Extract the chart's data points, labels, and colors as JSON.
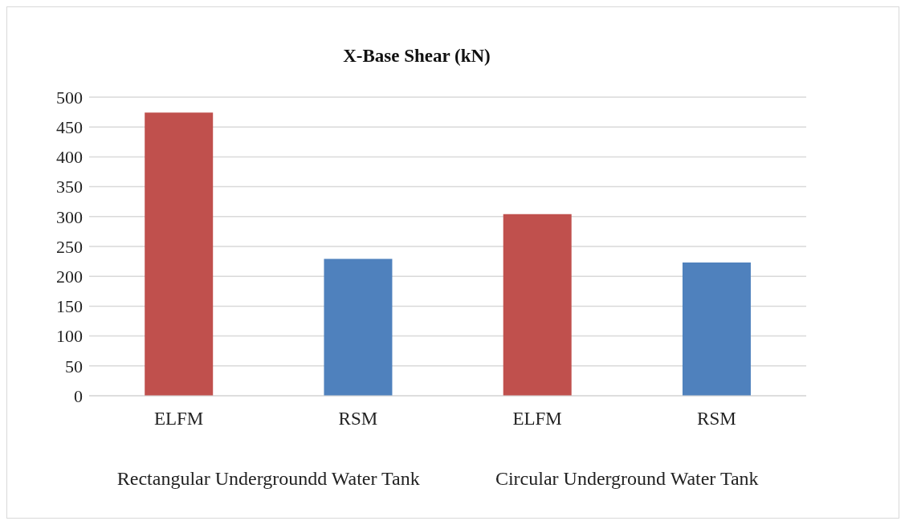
{
  "chart_data": {
    "type": "bar",
    "title": "X-Base Shear (kN)",
    "categories": [
      "ELFM",
      "RSM",
      "ELFM",
      "RSM"
    ],
    "values": [
      474,
      229,
      304,
      223
    ],
    "colors": [
      "#c0504d",
      "#4f81bd",
      "#c0504d",
      "#4f81bd"
    ],
    "ylim": [
      0,
      500
    ],
    "yticks": [
      0,
      50,
      100,
      150,
      200,
      250,
      300,
      350,
      400,
      450,
      500
    ],
    "grid": "y",
    "annotations": [
      "Rectangular Undergroundd Water Tank",
      "Circular Underground Water Tank"
    ]
  }
}
